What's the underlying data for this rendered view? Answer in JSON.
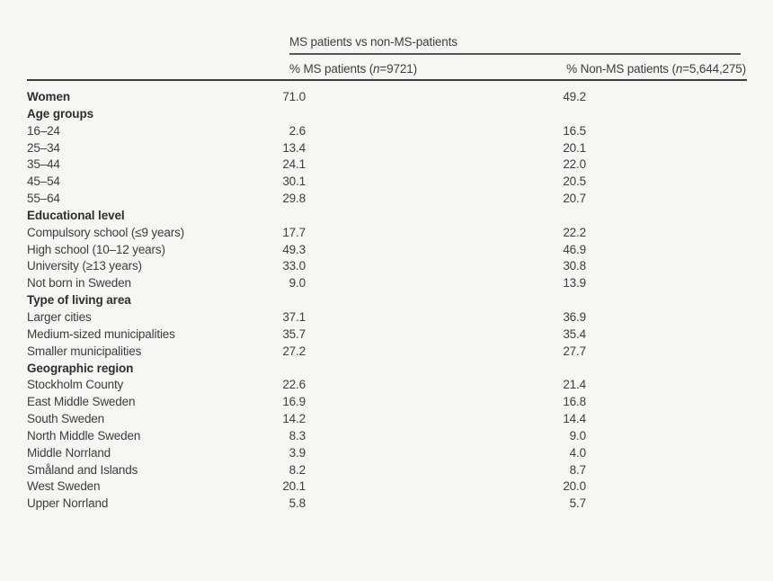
{
  "page": {
    "background_color": "#f6f6f5",
    "text_color": "#3d3d3d",
    "rule_thick_color": "#3c3c3c",
    "rule_thin_color": "#585858"
  },
  "table": {
    "spanner": "MS patients vs non-MS-patients",
    "col1": {
      "pre": "% MS patients (",
      "n": "n",
      "post": "=9721)"
    },
    "col2": {
      "pre": "% Non-MS patients (",
      "n": "n",
      "post": "=5,644,275)"
    },
    "rows": [
      {
        "label": "Women",
        "bold": true,
        "ms": "71.0",
        "non_ms": "49.2"
      },
      {
        "label": "Age groups",
        "bold": true,
        "ms": "",
        "non_ms": ""
      },
      {
        "label": "16–24",
        "bold": false,
        "ms": "2.6",
        "non_ms": "16.5"
      },
      {
        "label": "25–34",
        "bold": false,
        "ms": "13.4",
        "non_ms": "20.1"
      },
      {
        "label": "35–44",
        "bold": false,
        "ms": "24.1",
        "non_ms": "22.0"
      },
      {
        "label": "45–54",
        "bold": false,
        "ms": "30.1",
        "non_ms": "20.5"
      },
      {
        "label": "55–64",
        "bold": false,
        "ms": "29.8",
        "non_ms": "20.7"
      },
      {
        "label": "Educational level",
        "bold": true,
        "ms": "",
        "non_ms": ""
      },
      {
        "label": "Compulsory school (≤9 years)",
        "bold": false,
        "ms": "17.7",
        "non_ms": "22.2"
      },
      {
        "label": "High school (10–12 years)",
        "bold": false,
        "ms": "49.3",
        "non_ms": "46.9"
      },
      {
        "label": "University (≥13 years)",
        "bold": false,
        "ms": "33.0",
        "non_ms": "30.8"
      },
      {
        "label": "Not born in Sweden",
        "bold": false,
        "ms": "9.0",
        "non_ms": "13.9"
      },
      {
        "label": "Type of living area",
        "bold": true,
        "ms": "",
        "non_ms": ""
      },
      {
        "label": "Larger cities",
        "bold": false,
        "ms": "37.1",
        "non_ms": "36.9"
      },
      {
        "label": "Medium-sized municipalities",
        "bold": false,
        "ms": "35.7",
        "non_ms": "35.4"
      },
      {
        "label": "Smaller municipalities",
        "bold": false,
        "ms": "27.2",
        "non_ms": "27.7"
      },
      {
        "label": "Geographic region",
        "bold": true,
        "ms": "",
        "non_ms": ""
      },
      {
        "label": "Stockholm County",
        "bold": false,
        "ms": "22.6",
        "non_ms": "21.4"
      },
      {
        "label": "East Middle Sweden",
        "bold": false,
        "ms": "16.9",
        "non_ms": "16.8"
      },
      {
        "label": "South Sweden",
        "bold": false,
        "ms": "14.2",
        "non_ms": "14.4"
      },
      {
        "label": "North Middle Sweden",
        "bold": false,
        "ms": "8.3",
        "non_ms": "9.0"
      },
      {
        "label": "Middle Norrland",
        "bold": false,
        "ms": "3.9",
        "non_ms": "4.0"
      },
      {
        "label": "Småland and Islands",
        "bold": false,
        "ms": "8.2",
        "non_ms": "8.7"
      },
      {
        "label": "West Sweden",
        "bold": false,
        "ms": "20.1",
        "non_ms": "20.0"
      },
      {
        "label": "Upper Norrland",
        "bold": false,
        "ms": "5.8",
        "non_ms": "5.7"
      }
    ]
  }
}
